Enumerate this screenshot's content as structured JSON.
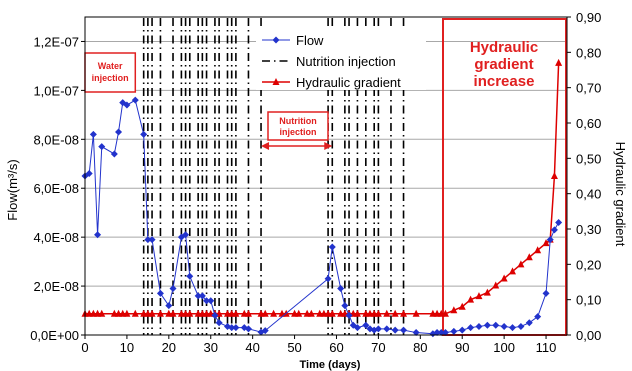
{
  "chart_data": {
    "type": "line",
    "xlabel": "Time (days)",
    "ylabel": "Flow(m³/s)",
    "y2label": "Hydraulic gradient",
    "xlim": [
      0,
      115
    ],
    "ylim": [
      0,
      1.3e-07
    ],
    "y2lim": [
      0,
      0.9
    ],
    "x_ticks": [
      "0",
      "10",
      "20",
      "30",
      "40",
      "50",
      "60",
      "70",
      "80",
      "90",
      "100",
      "110"
    ],
    "y_ticks": [
      "0,0E+00",
      "2,0E-08",
      "4,0E-08",
      "6,0E-08",
      "8,0E-08",
      "1,0E-07",
      "1,2E-07"
    ],
    "y2_ticks": [
      "0,00",
      "0,10",
      "0,20",
      "0,30",
      "0,40",
      "0,50",
      "0,60",
      "0,70",
      "0,80",
      "0,90"
    ],
    "grid": "horizontal",
    "legend_position": "top-center",
    "colors": {
      "flow": "#2233cc",
      "gradient": "#dd0000",
      "annotation": "#e02020",
      "injection": "#000000"
    },
    "series": [
      {
        "name": "Flow",
        "axis": "left",
        "marker": "diamond",
        "x": [
          0,
          1,
          2,
          3,
          4,
          7,
          8,
          9,
          10,
          12,
          14,
          15,
          16,
          18,
          20,
          21,
          23,
          24,
          25,
          27,
          28,
          29,
          30,
          31,
          32,
          34,
          35,
          36,
          38,
          39,
          42,
          43,
          58,
          59,
          61,
          62,
          63,
          64,
          65,
          67,
          68,
          69,
          70,
          72,
          74,
          76,
          79,
          83,
          84,
          85,
          86,
          88,
          90,
          92,
          94,
          96,
          98,
          100,
          102,
          104,
          106,
          108,
          110,
          111,
          112,
          113
        ],
        "y": [
          6.5e-08,
          6.6e-08,
          8.2e-08,
          4.1e-08,
          7.7e-08,
          7.4e-08,
          8.3e-08,
          9.5e-08,
          9.4e-08,
          9.6e-08,
          8.2e-08,
          3.9e-08,
          3.9e-08,
          1.7e-08,
          1.2e-08,
          1.9e-08,
          4e-08,
          4.1e-08,
          2.4e-08,
          1.6e-08,
          1.6e-08,
          1.4e-08,
          1.4e-08,
          8e-09,
          5e-09,
          3.5e-09,
          3e-09,
          3e-09,
          3e-09,
          2.5e-09,
          1.2e-09,
          1.8e-09,
          2.3e-08,
          3.6e-08,
          1.9e-08,
          1.2e-08,
          8e-09,
          4e-09,
          3e-09,
          4e-09,
          2.5e-09,
          2e-09,
          2.5e-09,
          2.5e-09,
          2e-09,
          2e-09,
          1e-09,
          5e-10,
          1e-09,
          1e-09,
          1e-09,
          1.5e-09,
          2e-09,
          3e-09,
          3.5e-09,
          4e-09,
          4e-09,
          3.5e-09,
          3e-09,
          3.5e-09,
          5e-09,
          7.5e-09,
          1.7e-08,
          3.9e-08,
          4.3e-08,
          4.6e-08
        ]
      },
      {
        "name": "Hydraulic gradient",
        "axis": "right",
        "marker": "triangle",
        "x": [
          0,
          1,
          2,
          3,
          4,
          7,
          8,
          9,
          10,
          12,
          14,
          15,
          16,
          18,
          20,
          21,
          23,
          24,
          25,
          27,
          28,
          29,
          30,
          31,
          32,
          34,
          35,
          36,
          38,
          39,
          42,
          43,
          45,
          47,
          48,
          50,
          51,
          53,
          54,
          56,
          57,
          58,
          59,
          61,
          62,
          63,
          64,
          65,
          67,
          68,
          69,
          70,
          72,
          74,
          76,
          79,
          83,
          84,
          85,
          86,
          88,
          90,
          92,
          94,
          96,
          98,
          100,
          102,
          104,
          106,
          108,
          110,
          111,
          112,
          113
        ],
        "y": [
          0.06,
          0.06,
          0.06,
          0.06,
          0.06,
          0.06,
          0.06,
          0.06,
          0.06,
          0.06,
          0.06,
          0.06,
          0.06,
          0.06,
          0.06,
          0.06,
          0.06,
          0.06,
          0.06,
          0.06,
          0.06,
          0.06,
          0.06,
          0.06,
          0.06,
          0.06,
          0.06,
          0.06,
          0.06,
          0.06,
          0.06,
          0.06,
          0.06,
          0.06,
          0.06,
          0.06,
          0.06,
          0.06,
          0.06,
          0.06,
          0.06,
          0.06,
          0.06,
          0.06,
          0.06,
          0.06,
          0.06,
          0.06,
          0.06,
          0.06,
          0.06,
          0.06,
          0.06,
          0.06,
          0.06,
          0.06,
          0.06,
          0.06,
          0.06,
          0.06,
          0.07,
          0.08,
          0.1,
          0.11,
          0.12,
          0.14,
          0.16,
          0.18,
          0.2,
          0.22,
          0.24,
          0.26,
          0.27,
          0.45,
          0.77
        ]
      },
      {
        "name": "Nutrition injection",
        "type": "vertical-events",
        "style": "dash-dot",
        "x": [
          14,
          15,
          16,
          18,
          21,
          23,
          24,
          25,
          27,
          28,
          29,
          31,
          32,
          34,
          35,
          36,
          39,
          42,
          58,
          59,
          62,
          63,
          65,
          67,
          69,
          70,
          73,
          76
        ]
      }
    ],
    "legend": [
      "Flow",
      "Nutrition injection",
      "Hydraulic gradient"
    ],
    "annotations": {
      "water_injection": [
        "Water",
        "injection"
      ],
      "nutrition_injection": [
        "Nutrition",
        "injection"
      ],
      "gradient_increase": [
        "Hydraulic",
        "gradient",
        "increase"
      ]
    }
  }
}
